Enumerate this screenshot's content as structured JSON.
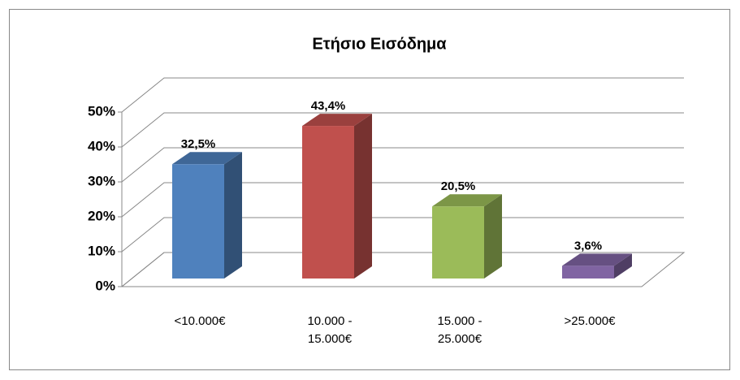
{
  "chart_data": {
    "type": "bar3d",
    "title": "Ετήσιο Εισόδημα",
    "categories": [
      "<10.000€",
      "10.000 - 15.000€",
      "15.000 - 25.000€",
      ">25.000€"
    ],
    "values": [
      32.5,
      43.4,
      20.5,
      3.6
    ],
    "value_labels": [
      "32,5%",
      "43,4%",
      "20,5%",
      "3,6%"
    ],
    "colors": [
      "#4f81bd",
      "#c0504d",
      "#9bbb59",
      "#8064a2"
    ],
    "ylim": [
      0,
      50
    ],
    "yticks": [
      {
        "value": 0,
        "label": "0%"
      },
      {
        "value": 10,
        "label": "10%"
      },
      {
        "value": 20,
        "label": "20%"
      },
      {
        "value": 30,
        "label": "30%"
      },
      {
        "value": 40,
        "label": "40%"
      },
      {
        "value": 50,
        "label": "50%"
      }
    ],
    "grid": true
  }
}
